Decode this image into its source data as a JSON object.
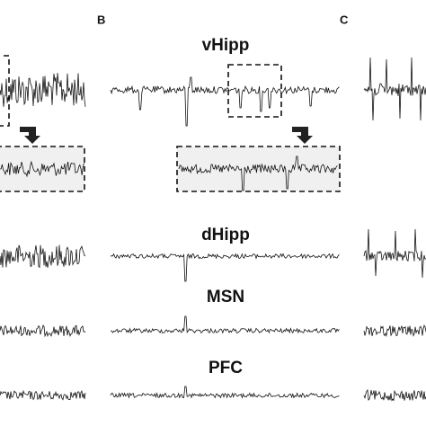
{
  "panel_labels": [
    "B",
    "C"
  ],
  "regions": [
    "vHipp",
    "dHipp",
    "MSN",
    "PFC"
  ]
}
